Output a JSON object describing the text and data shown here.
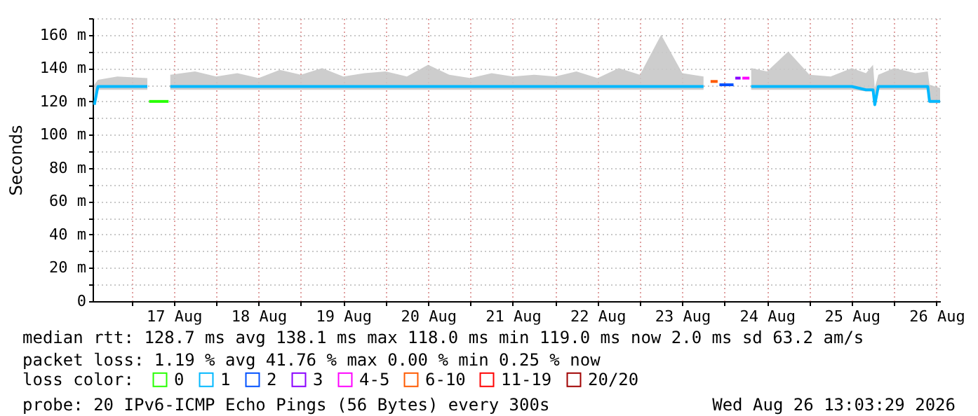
{
  "chart_data": {
    "type": "line",
    "ylabel": "Seconds",
    "legend_title": "loss color:",
    "legend": "bottom",
    "grid": true,
    "ylim": [
      0,
      170
    ],
    "yticks": [
      {
        "value": 0,
        "label": "0"
      },
      {
        "value": 10,
        "label": null
      },
      {
        "value": 20,
        "label": "20 m"
      },
      {
        "value": 30,
        "label": null
      },
      {
        "value": 40,
        "label": "40 m"
      },
      {
        "value": 50,
        "label": null
      },
      {
        "value": 60,
        "label": "60 m"
      },
      {
        "value": 70,
        "label": null
      },
      {
        "value": 80,
        "label": "80 m"
      },
      {
        "value": 90,
        "label": null
      },
      {
        "value": 100,
        "label": "100 m"
      },
      {
        "value": 110,
        "label": null
      },
      {
        "value": 120,
        "label": "120 m"
      },
      {
        "value": 130,
        "label": null
      },
      {
        "value": 140,
        "label": "140 m"
      },
      {
        "value": 150,
        "label": null
      },
      {
        "value": 160,
        "label": "160 m"
      },
      {
        "value": 170,
        "label": null
      }
    ],
    "xlim": [
      "2026-08-16T13:00",
      "2026-08-26T13:00"
    ],
    "xticks": [
      {
        "value": "2026-08-17T00:00",
        "label": null
      },
      {
        "value": "2026-08-17T12:00",
        "label": "17 Aug"
      },
      {
        "value": "2026-08-18T00:00",
        "label": null
      },
      {
        "value": "2026-08-18T12:00",
        "label": "18 Aug"
      },
      {
        "value": "2026-08-19T00:00",
        "label": null
      },
      {
        "value": "2026-08-19T12:00",
        "label": "19 Aug"
      },
      {
        "value": "2026-08-20T00:00",
        "label": null
      },
      {
        "value": "2026-08-20T12:00",
        "label": "20 Aug"
      },
      {
        "value": "2026-08-21T00:00",
        "label": null
      },
      {
        "value": "2026-08-21T12:00",
        "label": "21 Aug"
      },
      {
        "value": "2026-08-22T00:00",
        "label": null
      },
      {
        "value": "2026-08-22T12:00",
        "label": "22 Aug"
      },
      {
        "value": "2026-08-23T00:00",
        "label": null
      },
      {
        "value": "2026-08-23T12:00",
        "label": "23 Aug"
      },
      {
        "value": "2026-08-24T00:00",
        "label": null
      },
      {
        "value": "2026-08-24T12:00",
        "label": "24 Aug"
      },
      {
        "value": "2026-08-25T00:00",
        "label": null
      },
      {
        "value": "2026-08-25T12:00",
        "label": "25 Aug"
      },
      {
        "value": "2026-08-26T00:00",
        "label": null
      },
      {
        "value": "2026-08-26T12:00",
        "label": "26 Aug"
      }
    ],
    "series": [
      {
        "name": "0",
        "color": "#26ff00",
        "x": [
          "2026-08-17T05:00",
          "2026-08-17T10:30"
        ],
        "values": [
          120,
          120
        ]
      },
      {
        "name": "1",
        "color": "#00b8ff",
        "x": [
          "2026-08-16T13:30",
          "2026-08-16T14:30",
          "2026-08-16T20:00",
          "2026-08-17T04:30",
          "2026-08-17T05:00",
          "2026-08-17T10:30",
          "2026-08-17T11:00",
          "2026-08-17T18:00",
          "2026-08-18T00:00",
          "2026-08-18T06:00",
          "2026-08-18T12:00",
          "2026-08-18T18:00",
          "2026-08-19T00:00",
          "2026-08-19T06:00",
          "2026-08-19T12:00",
          "2026-08-19T18:00",
          "2026-08-20T00:00",
          "2026-08-20T06:00",
          "2026-08-20T12:00",
          "2026-08-20T18:00",
          "2026-08-21T00:00",
          "2026-08-21T06:00",
          "2026-08-21T12:00",
          "2026-08-21T18:00",
          "2026-08-22T00:00",
          "2026-08-22T06:00",
          "2026-08-22T12:00",
          "2026-08-22T18:00",
          "2026-08-23T00:00",
          "2026-08-23T06:00",
          "2026-08-23T12:00",
          "2026-08-23T18:00",
          "2026-08-23T20:00",
          "2026-08-24T07:30",
          "2026-08-24T12:00",
          "2026-08-24T18:00",
          "2026-08-25T00:00",
          "2026-08-25T06:00",
          "2026-08-25T12:00",
          "2026-08-25T16:00",
          "2026-08-25T18:00",
          "2026-08-25T18:30",
          "2026-08-25T19:30",
          "2026-08-26T00:00",
          "2026-08-26T06:00",
          "2026-08-26T09:30",
          "2026-08-26T10:00",
          "2026-08-26T13:00"
        ],
        "values": [
          118,
          129,
          129,
          129,
          null,
          null,
          129,
          129,
          129,
          129,
          129,
          129,
          129,
          129,
          129,
          129,
          129,
          129,
          129,
          129,
          129,
          129,
          129,
          129,
          129,
          129,
          129,
          129,
          129,
          129,
          129,
          129,
          null,
          129,
          129,
          129,
          129,
          129,
          129,
          127,
          127,
          118,
          129,
          129,
          129,
          129,
          120,
          120
        ],
        "lower": [
          118,
          127,
          127,
          127,
          null,
          null,
          127,
          127,
          127,
          127,
          127,
          127,
          127,
          127,
          127,
          127,
          127,
          127,
          127,
          127,
          127,
          127,
          127,
          127,
          127,
          127,
          127,
          127,
          127,
          127,
          127,
          127,
          null,
          127,
          127,
          127,
          127,
          127,
          127,
          126,
          126,
          118,
          127,
          127,
          127,
          127,
          119,
          119
        ],
        "upper": [
          130,
          133,
          135,
          134,
          null,
          null,
          136,
          138,
          135,
          137,
          134,
          139,
          136,
          140,
          135,
          137,
          138,
          135,
          142,
          136,
          134,
          137,
          135,
          136,
          135,
          138,
          134,
          140,
          136,
          160,
          137,
          135,
          null,
          140,
          138,
          150,
          136,
          135,
          140,
          137,
          142,
          128,
          136,
          140,
          137,
          138,
          130,
          128
        ]
      },
      {
        "name": "2",
        "color": "#0050ff",
        "x": [
          "2026-08-23T22:30",
          "2026-08-24T02:30"
        ],
        "values": [
          130,
          130
        ]
      },
      {
        "name": "3",
        "color": "#8a00ff",
        "x": [
          "2026-08-24T03:00",
          "2026-08-24T04:30"
        ],
        "values": [
          134,
          134
        ]
      },
      {
        "name": "4-5",
        "color": "#ff00ff",
        "x": [
          "2026-08-24T05:00",
          "2026-08-24T07:00"
        ],
        "values": [
          134,
          134
        ]
      },
      {
        "name": "6-10",
        "color": "#ff5a00",
        "x": [
          "2026-08-23T20:00",
          "2026-08-23T22:00"
        ],
        "values": [
          132,
          132
        ]
      },
      {
        "name": "11-19",
        "color": "#ff0000"
      },
      {
        "name": "20/20",
        "color": "#a00000"
      }
    ],
    "annotations": [
      "median rtt:  128.7 ms avg  138.1 ms max  118.0 ms min  119.0 ms now  2.0 ms sd  63.2   am/s",
      "packet loss: 1.19 % avg  41.76 % max  0.00 % min  0.25 % now",
      "probe:       20 IPv6-ICMP Echo Pings (56 Bytes) every 300s",
      "Wed Aug 26 13:03:29 2026"
    ]
  }
}
